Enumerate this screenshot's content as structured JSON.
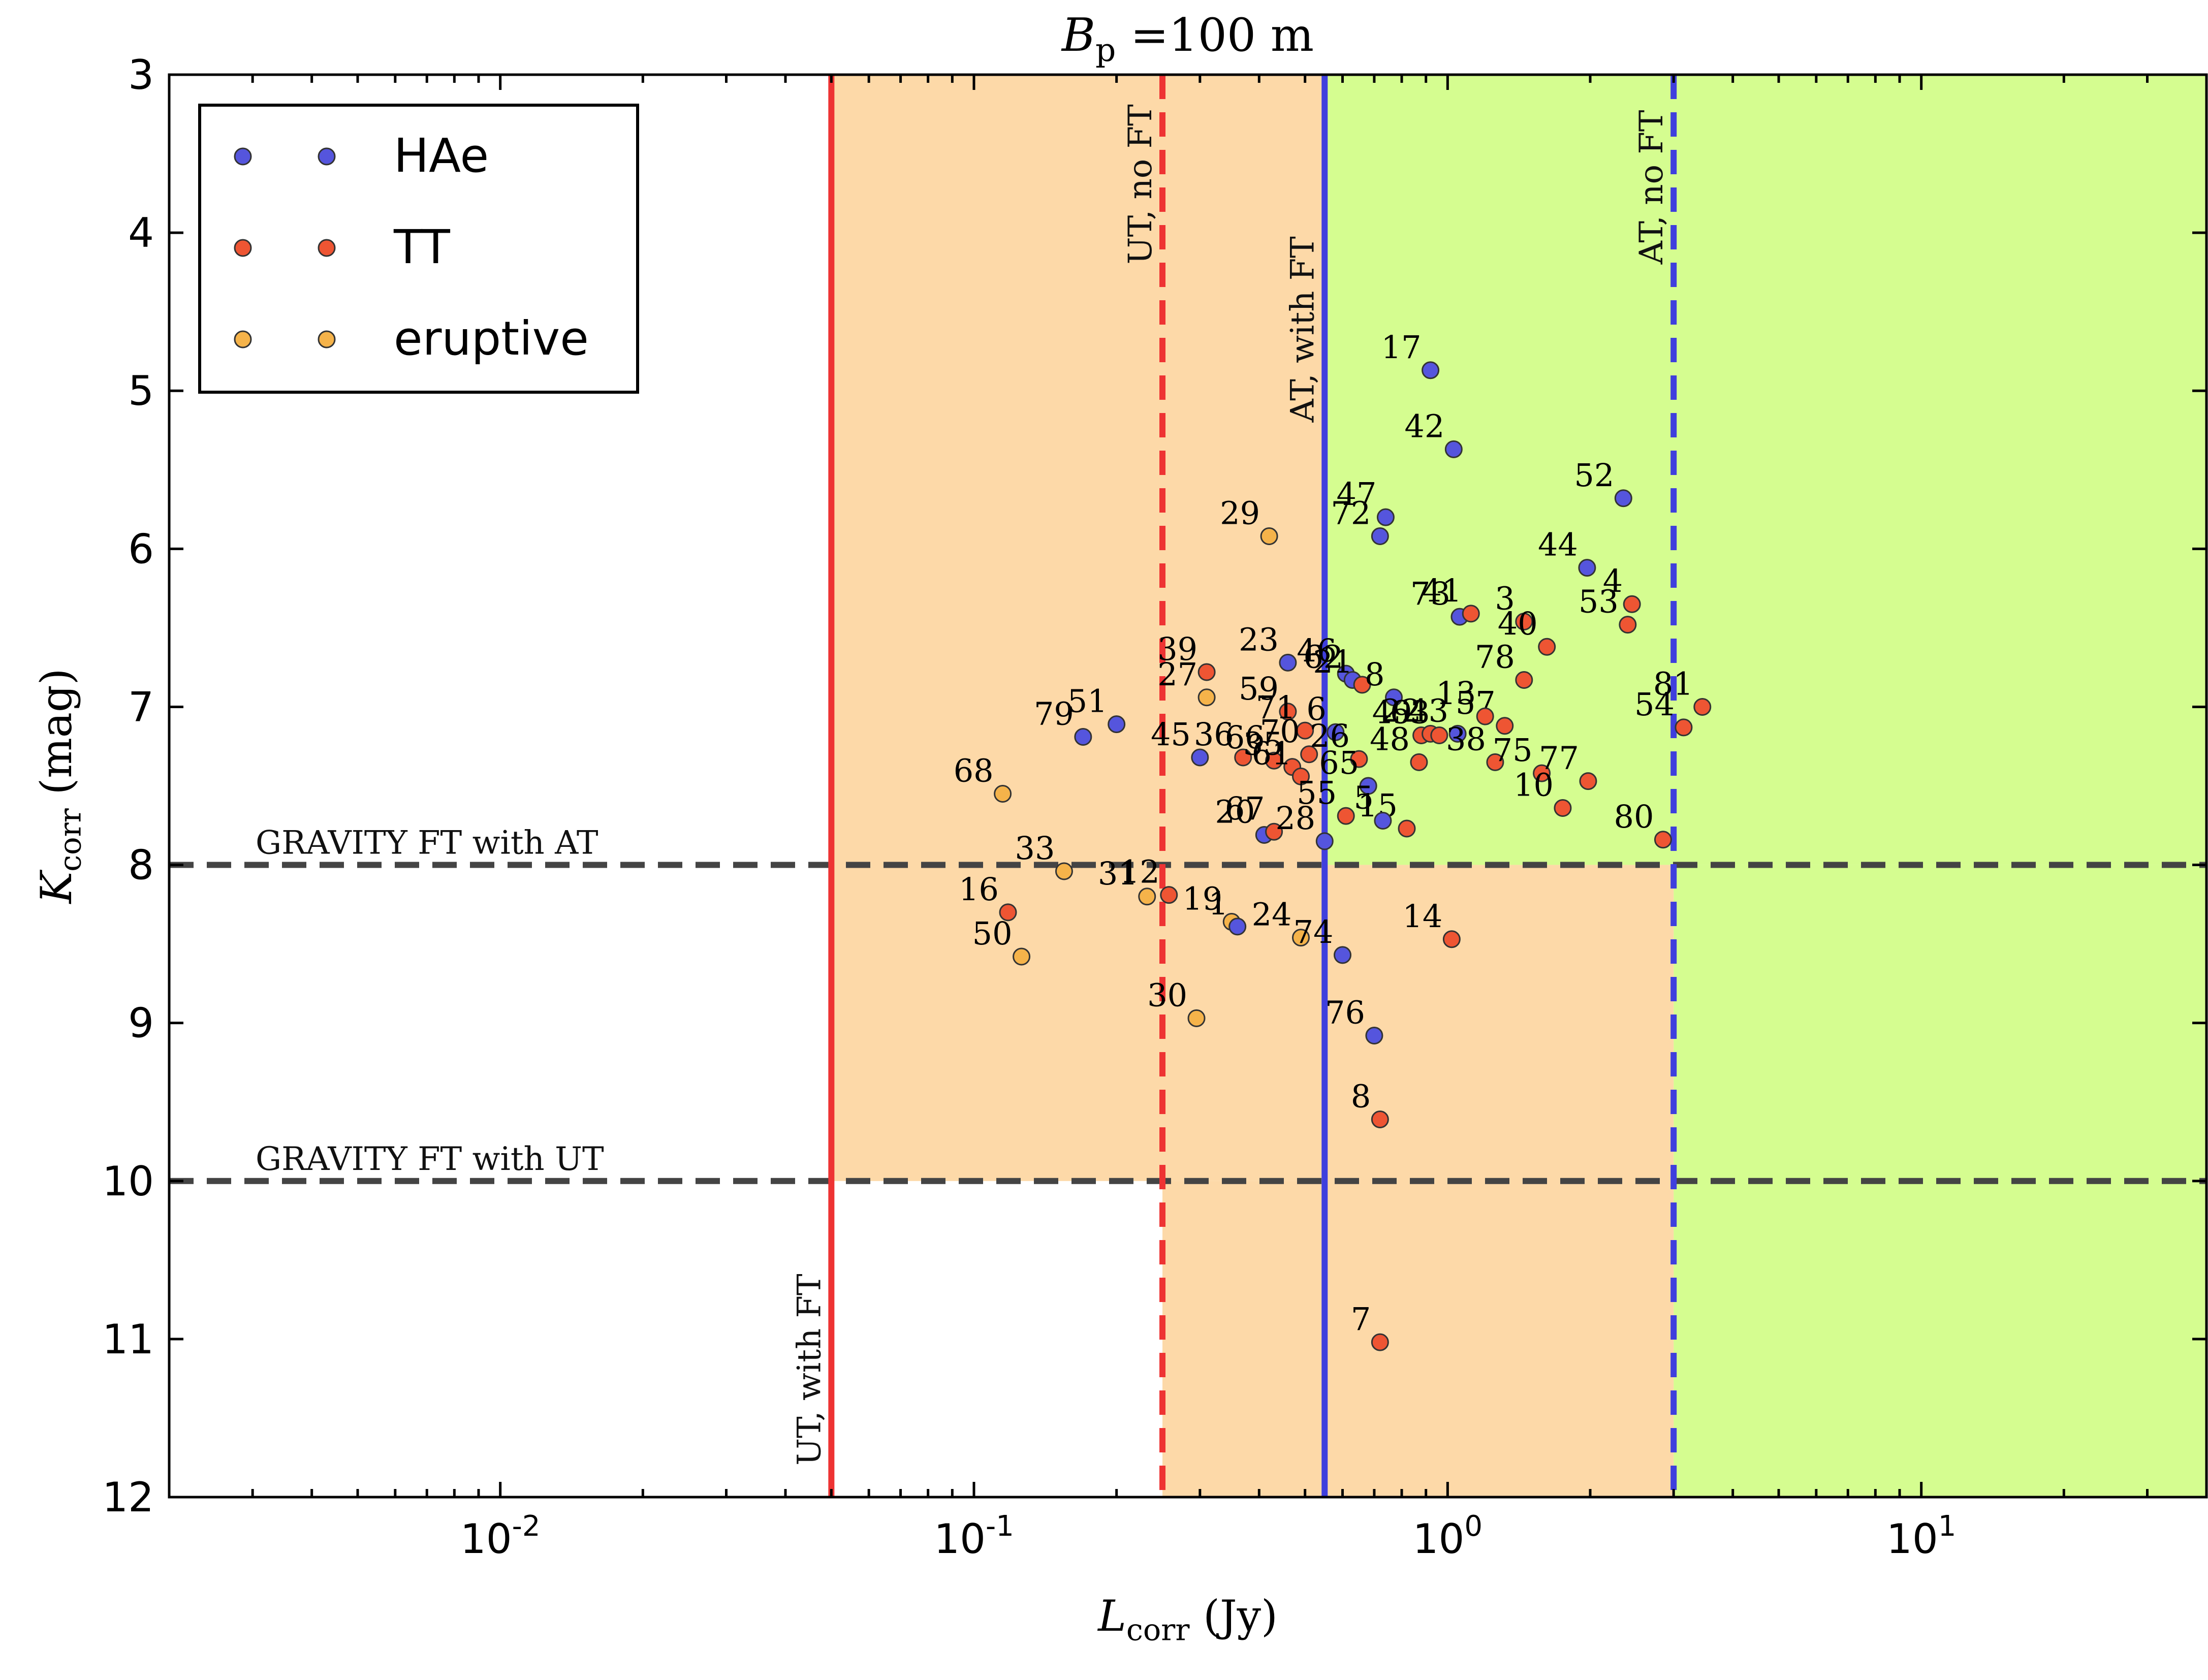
{
  "chart_data": {
    "type": "scatter",
    "title": "B_p = 100 m",
    "title_parts": {
      "main": "B",
      "sub": "p",
      "rest": " =100 m"
    },
    "xlabel_parts": {
      "main": "L",
      "sub": "corr",
      "rest": " (Jy)"
    },
    "ylabel_parts": {
      "main": "K",
      "sub": "corr",
      "rest": " (mag)"
    },
    "x_scale": "log",
    "xlim": [
      0.002,
      40
    ],
    "ylim": [
      12,
      3
    ],
    "y_inverted": true,
    "x_ticks": [
      {
        "value": 0.01,
        "base": "10",
        "exp": "-2"
      },
      {
        "value": 0.1,
        "base": "10",
        "exp": "-1"
      },
      {
        "value": 1,
        "base": "10",
        "exp": "0"
      },
      {
        "value": 10,
        "base": "10",
        "exp": "1"
      }
    ],
    "y_ticks": [
      "3",
      "4",
      "5",
      "6",
      "7",
      "8",
      "9",
      "10",
      "11",
      "12"
    ],
    "grid": false,
    "legend_position": "top-left",
    "series": [
      {
        "name": "HAe",
        "color": "#5555dd"
      },
      {
        "name": "TT",
        "color": "#ee5533"
      },
      {
        "name": "eruptive",
        "color": "#f5b34a"
      }
    ],
    "regions": [
      {
        "label": "UT window",
        "color": "#fdd9a8",
        "x": [
          0.05,
          0.55
        ],
        "y": [
          3,
          10
        ]
      },
      {
        "label": "UT no FT band",
        "color": "#fdd9a8",
        "x": [
          0.25,
          3.0
        ],
        "y": [
          10,
          12
        ]
      },
      {
        "label": "AT window",
        "color": "#d5fd90",
        "x": [
          0.55,
          40
        ],
        "y": [
          3,
          8
        ]
      },
      {
        "label": "AT no FT band",
        "color": "#d5fd90",
        "x": [
          3.0,
          40
        ],
        "y": [
          8,
          12
        ]
      },
      {
        "label": "AT no FT lower-mid",
        "color": "#fdd9a8",
        "x": [
          0.55,
          3.0
        ],
        "y": [
          8,
          12
        ]
      }
    ],
    "vertical_lines": [
      {
        "x": 0.05,
        "style": "solid",
        "color": "#ee3333",
        "label": "UT, with FT",
        "label_y": 11.8
      },
      {
        "x": 0.25,
        "style": "dashed",
        "color": "#ee3333",
        "label": "UT, no FT",
        "label_y": 4.2
      },
      {
        "x": 0.55,
        "style": "solid",
        "color": "#3f3fdd",
        "label": "AT, with FT",
        "label_y": 5.2
      },
      {
        "x": 3.0,
        "style": "dashed",
        "color": "#3f3fdd",
        "label": "AT, no FT",
        "label_y": 4.2
      }
    ],
    "horizontal_lines": [
      {
        "y": 8,
        "style": "dashed",
        "color": "#444444",
        "label": "GRAVITY FT with AT"
      },
      {
        "y": 10,
        "style": "dashed",
        "color": "#444444",
        "label": "GRAVITY FT with UT"
      }
    ],
    "points": [
      {
        "id": "17",
        "x": 0.92,
        "y": 4.87,
        "series": "HAe"
      },
      {
        "id": "42",
        "x": 1.03,
        "y": 5.37,
        "series": "HAe"
      },
      {
        "id": "52",
        "x": 2.35,
        "y": 5.68,
        "series": "HAe"
      },
      {
        "id": "47",
        "x": 0.74,
        "y": 5.8,
        "series": "HAe"
      },
      {
        "id": "72",
        "x": 0.72,
        "y": 5.92,
        "series": "HAe"
      },
      {
        "id": "29",
        "x": 0.42,
        "y": 5.92,
        "series": "eruptive"
      },
      {
        "id": "44",
        "x": 1.97,
        "y": 6.12,
        "series": "HAe"
      },
      {
        "id": "4",
        "x": 2.45,
        "y": 6.35,
        "series": "TT"
      },
      {
        "id": "53",
        "x": 2.4,
        "y": 6.48,
        "series": "TT"
      },
      {
        "id": "3",
        "x": 1.45,
        "y": 6.46,
        "series": "TT"
      },
      {
        "id": "40",
        "x": 1.62,
        "y": 6.62,
        "series": "TT"
      },
      {
        "id": "73",
        "x": 1.06,
        "y": 6.43,
        "series": "HAe"
      },
      {
        "id": "41",
        "x": 1.12,
        "y": 6.41,
        "series": "TT"
      },
      {
        "id": "23",
        "x": 0.46,
        "y": 6.72,
        "series": "HAe"
      },
      {
        "id": "46",
        "x": 0.61,
        "y": 6.79,
        "series": "HAe"
      },
      {
        "id": "62",
        "x": 0.63,
        "y": 6.83,
        "series": "HAe"
      },
      {
        "id": "21",
        "x": 0.66,
        "y": 6.86,
        "series": "TT"
      },
      {
        "id": "39",
        "x": 0.31,
        "y": 6.78,
        "series": "TT"
      },
      {
        "id": "27",
        "x": 0.31,
        "y": 6.94,
        "series": "eruptive"
      },
      {
        "id": "78",
        "x": 1.45,
        "y": 6.83,
        "series": "TT"
      },
      {
        "id": "81",
        "x": 3.45,
        "y": 7.0,
        "series": "TT"
      },
      {
        "id": "54",
        "x": 3.15,
        "y": 7.13,
        "series": "TT"
      },
      {
        "id": "8",
        "x": 0.77,
        "y": 6.94,
        "series": "HAe"
      },
      {
        "id": "59",
        "x": 0.46,
        "y": 7.03,
        "series": "TT"
      },
      {
        "id": "57",
        "x": 1.32,
        "y": 7.12,
        "series": "TT"
      },
      {
        "id": "13",
        "x": 1.2,
        "y": 7.06,
        "series": "TT"
      },
      {
        "id": "51",
        "x": 0.2,
        "y": 7.11,
        "series": "HAe"
      },
      {
        "id": "79",
        "x": 0.17,
        "y": 7.19,
        "series": "HAe"
      },
      {
        "id": "71",
        "x": 0.5,
        "y": 7.15,
        "series": "TT"
      },
      {
        "id": "43",
        "x": 1.05,
        "y": 7.17,
        "series": "HAe"
      },
      {
        "id": "49",
        "x": 0.88,
        "y": 7.18,
        "series": "TT"
      },
      {
        "id": "22",
        "x": 0.92,
        "y": 7.17,
        "series": "TT"
      },
      {
        "id": "63",
        "x": 0.96,
        "y": 7.18,
        "series": "TT"
      },
      {
        "id": "6",
        "x": 0.58,
        "y": 7.16,
        "series": "HAe"
      },
      {
        "id": "48",
        "x": 0.87,
        "y": 7.35,
        "series": "TT"
      },
      {
        "id": "38",
        "x": 1.26,
        "y": 7.35,
        "series": "TT"
      },
      {
        "id": "75",
        "x": 1.58,
        "y": 7.42,
        "series": "TT"
      },
      {
        "id": "77",
        "x": 1.98,
        "y": 7.47,
        "series": "TT"
      },
      {
        "id": "45",
        "x": 0.3,
        "y": 7.32,
        "series": "HAe"
      },
      {
        "id": "36",
        "x": 0.37,
        "y": 7.32,
        "series": "TT"
      },
      {
        "id": "66",
        "x": 0.43,
        "y": 7.34,
        "series": "TT"
      },
      {
        "id": "70",
        "x": 0.51,
        "y": 7.3,
        "series": "TT"
      },
      {
        "id": "35",
        "x": 0.47,
        "y": 7.38,
        "series": "TT"
      },
      {
        "id": "61",
        "x": 0.49,
        "y": 7.44,
        "series": "TT"
      },
      {
        "id": "26",
        "x": 0.65,
        "y": 7.33,
        "series": "TT"
      },
      {
        "id": "10",
        "x": 1.75,
        "y": 7.64,
        "series": "TT"
      },
      {
        "id": "55",
        "x": 0.61,
        "y": 7.69,
        "series": "TT"
      },
      {
        "id": "65",
        "x": 0.68,
        "y": 7.5,
        "series": "HAe"
      },
      {
        "id": "15",
        "x": 0.82,
        "y": 7.77,
        "series": "TT"
      },
      {
        "id": "5",
        "x": 0.73,
        "y": 7.72,
        "series": "HAe"
      },
      {
        "id": "68",
        "x": 0.115,
        "y": 7.55,
        "series": "eruptive"
      },
      {
        "id": "20",
        "x": 0.41,
        "y": 7.81,
        "series": "HAe"
      },
      {
        "id": "67",
        "x": 0.43,
        "y": 7.79,
        "series": "TT"
      },
      {
        "id": "28",
        "x": 0.55,
        "y": 7.85,
        "series": "HAe"
      },
      {
        "id": "80",
        "x": 2.85,
        "y": 7.84,
        "series": "TT"
      },
      {
        "id": "33",
        "x": 0.155,
        "y": 8.04,
        "series": "eruptive"
      },
      {
        "id": "31",
        "x": 0.232,
        "y": 8.2,
        "series": "eruptive"
      },
      {
        "id": "12",
        "x": 0.258,
        "y": 8.19,
        "series": "TT"
      },
      {
        "id": "16",
        "x": 0.118,
        "y": 8.3,
        "series": "TT"
      },
      {
        "id": "19",
        "x": 0.35,
        "y": 8.36,
        "series": "eruptive"
      },
      {
        "id": "1",
        "x": 0.36,
        "y": 8.39,
        "series": "HAe"
      },
      {
        "id": "24",
        "x": 0.49,
        "y": 8.46,
        "series": "eruptive"
      },
      {
        "id": "74",
        "x": 0.6,
        "y": 8.57,
        "series": "HAe"
      },
      {
        "id": "14",
        "x": 1.02,
        "y": 8.47,
        "series": "TT"
      },
      {
        "id": "50",
        "x": 0.126,
        "y": 8.58,
        "series": "eruptive"
      },
      {
        "id": "30",
        "x": 0.295,
        "y": 8.97,
        "series": "eruptive"
      },
      {
        "id": "76",
        "x": 0.7,
        "y": 9.08,
        "series": "HAe"
      },
      {
        "id": "8",
        "x": 0.72,
        "y": 9.61,
        "series": "TT",
        "dup": true
      },
      {
        "id": "7",
        "x": 0.72,
        "y": 11.02,
        "series": "TT"
      }
    ]
  }
}
